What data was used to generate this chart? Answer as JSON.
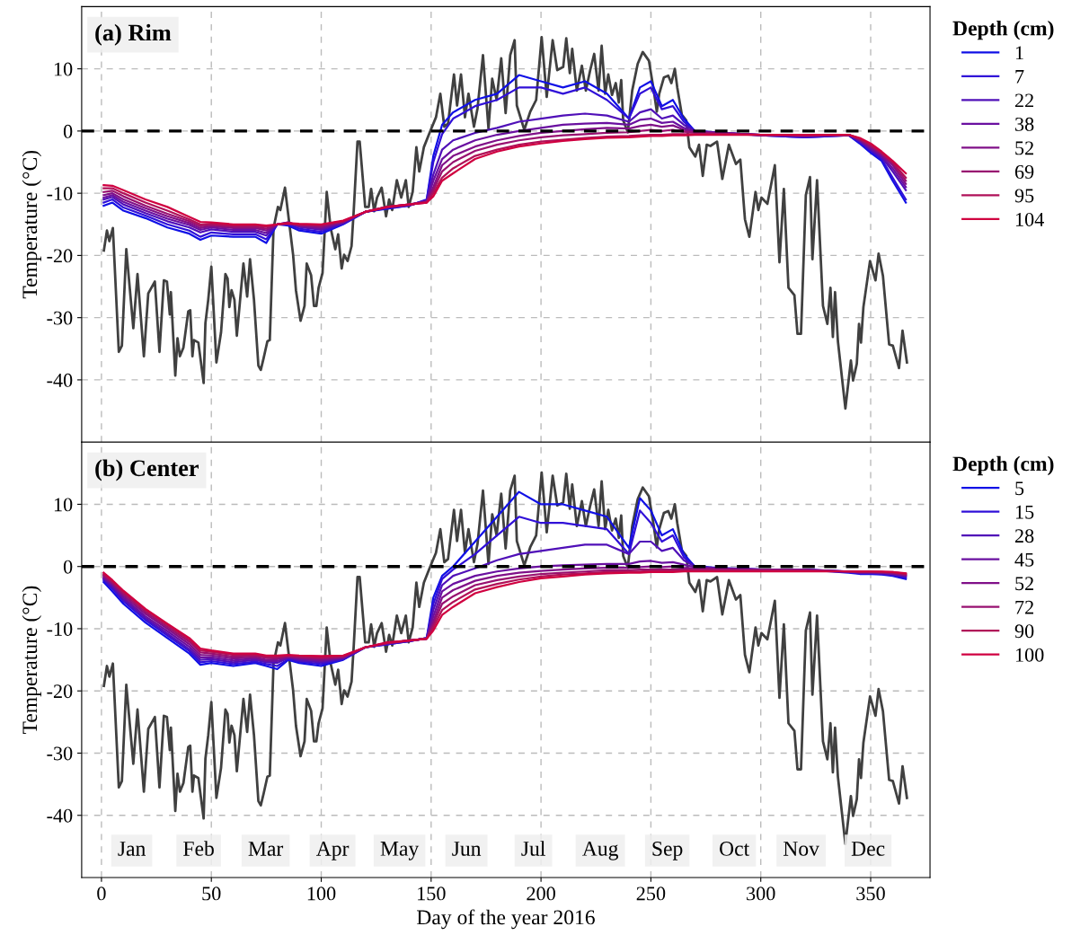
{
  "chart_data": [
    {
      "type": "line",
      "title": "(a) Rim",
      "ylabel": "Temperature (°C)",
      "legend_title": "Depth (cm)",
      "legend": "top right",
      "grid": true,
      "tick_labels": "y",
      "line_style": "solid",
      "xlim": [
        -9,
        377
      ],
      "xticks": [
        0,
        50,
        100,
        150,
        200,
        250,
        300,
        350
      ],
      "ylim": [
        -50,
        20
      ],
      "yticks": [
        -40,
        -30,
        -20,
        -10,
        0,
        10
      ],
      "ref_lines": [
        {
          "axis": "y",
          "value": 0,
          "color": "#000000",
          "line_style": "dashed"
        }
      ],
      "x": [
        1,
        5,
        10,
        20,
        30,
        40,
        45,
        50,
        60,
        70,
        75,
        80,
        85,
        90,
        100,
        110,
        120,
        130,
        140,
        148,
        151,
        155,
        160,
        170,
        180,
        190,
        200,
        210,
        220,
        230,
        240,
        245,
        250,
        255,
        260,
        265,
        270,
        280,
        300,
        320,
        340,
        345,
        350,
        355,
        360,
        366
      ],
      "series": [
        {
          "color": "#404040",
          "x": [
            1.1,
            2.5,
            3.6,
            5.2,
            7.9,
            9.3,
            11.3,
            14.5,
            16.4,
            19.3,
            21.3,
            24.3,
            26.4,
            28.4,
            29.8,
            31.1,
            31.6,
            33.6,
            34.6,
            35.7,
            37.3,
            39.5,
            40.4,
            41.4,
            42.1,
            44.1,
            46.5,
            47.3,
            48.6,
            50.0,
            52.3,
            54.4,
            56.4,
            57.4,
            58.2,
            59.2,
            60.5,
            61.6,
            64.6,
            66.3,
            67.6,
            69.4,
            71.4,
            72.5,
            73.8,
            75.5,
            76.6,
            78.3,
            80.3,
            81.4,
            83.5,
            87.2,
            88.5,
            90.6,
            92.4,
            93.4,
            95.4,
            96.7,
            97.8,
            98.8,
            100.6,
            102.5,
            104.3,
            106.4,
            107.7,
            109.3,
            110.4,
            112.0,
            113.8,
            114.8,
            116.5,
            117.5,
            120.0,
            121.6,
            122.7,
            124.1,
            125.4,
            127.5,
            129.5,
            130.9,
            132.3,
            134.4,
            136.4,
            138.5,
            139.8,
            141.6,
            143.3,
            144.6,
            146.7,
            149.4,
            152.2,
            154.2,
            156.0,
            157.7,
            160.4,
            161.8,
            163.6,
            165.4,
            167.0,
            169.5,
            171.1,
            173.6,
            176.1,
            177.8,
            179.8,
            181.9,
            183.9,
            186.0,
            188.0,
            189.0,
            192.4,
            195.1,
            197.8,
            200.3,
            202.6,
            205.3,
            207.4,
            210.1,
            211.5,
            213.1,
            214.2,
            216.3,
            218.6,
            220.4,
            222.4,
            224.2,
            226.2,
            227.6,
            229.2,
            230.6,
            232.3,
            234.0,
            235.4,
            236.5,
            237.4,
            239.5,
            241.5,
            244.0,
            246.3,
            249.1,
            251.1,
            252.7,
            253.8,
            255.9,
            257.9,
            259.3,
            260.9,
            262.0,
            264.1,
            266.1,
            267.5,
            270.2,
            271.9,
            273.6,
            275.4,
            277.1,
            280.1,
            282.5,
            285.5,
            288.7,
            290.7,
            292.8,
            294.8,
            297.6,
            298.9,
            300.3,
            303.0,
            306.4,
            308.5,
            310.5,
            312.6,
            315.3,
            316.7,
            318.3,
            320.5,
            322.4,
            323.5,
            325.6,
            328.3,
            330.3,
            331.7,
            332.8,
            333.8,
            335.1,
            338.5,
            341.0,
            342.0,
            343.7,
            344.7,
            345.6,
            346.7,
            349.7,
            352.2,
            353.6,
            355.6,
            358.4,
            360.1,
            362.9,
            364.5,
            366.5
          ],
          "values": [
            -19.2,
            -16.0,
            -17.7,
            -15.6,
            -35.5,
            -34.5,
            -19.0,
            -31.7,
            -23.0,
            -36.2,
            -26.1,
            -24.2,
            -35.5,
            -24.0,
            -24.2,
            -29.5,
            -25.9,
            -39.3,
            -33.3,
            -36.2,
            -34.8,
            -29.0,
            -28.8,
            -36.2,
            -33.6,
            -34.0,
            -40.5,
            -30.9,
            -27.1,
            -21.8,
            -37.2,
            -32.4,
            -23.0,
            -23.7,
            -28.3,
            -25.6,
            -27.1,
            -32.9,
            -21.3,
            -26.6,
            -20.6,
            -27.1,
            -37.7,
            -38.4,
            -36.5,
            -33.8,
            -33.6,
            -15.6,
            -12.2,
            -12.7,
            -9.1,
            -19.9,
            -25.6,
            -30.5,
            -28.1,
            -21.3,
            -23.2,
            -28.1,
            -28.1,
            -25.2,
            -22.8,
            -9.8,
            -15.6,
            -19.0,
            -16.6,
            -22.1,
            -19.9,
            -20.9,
            -18.5,
            -12.7,
            -1.7,
            -1.7,
            -12.2,
            -12.2,
            -9.3,
            -12.9,
            -10.7,
            -9.1,
            -13.7,
            -11.0,
            -12.7,
            -7.9,
            -10.7,
            -7.9,
            -12.2,
            -9.8,
            -2.6,
            -6.5,
            -2.6,
            -0.2,
            2.2,
            6.0,
            0.7,
            1.2,
            9.1,
            4.1,
            9.1,
            2.2,
            6.0,
            0.7,
            3.6,
            12.2,
            0.4,
            8.4,
            5.0,
            11.7,
            2.9,
            12.2,
            14.6,
            4.1,
            0.2,
            3.1,
            5.0,
            15.1,
            5.5,
            14.6,
            9.8,
            10.3,
            14.9,
            9.3,
            13.2,
            6.5,
            10.5,
            6.5,
            9.8,
            12.4,
            6.5,
            13.7,
            6.0,
            9.1,
            5.8,
            7.7,
            4.6,
            8.2,
            1.7,
            -0.2,
            6.5,
            10.8,
            12.7,
            11.3,
            7.0,
            3.1,
            6.0,
            8.6,
            8.9,
            7.7,
            10.0,
            7.0,
            2.6,
            1.7,
            -2.6,
            -4.1,
            -2.2,
            -7.2,
            -2.2,
            -2.4,
            -1.7,
            -7.7,
            -2.2,
            -5.3,
            -4.6,
            -14.2,
            -17.0,
            -9.8,
            -12.7,
            -10.7,
            -11.7,
            -5.5,
            -21.1,
            -9.3,
            -25.2,
            -26.4,
            -32.6,
            -32.6,
            -10.3,
            -7.4,
            -20.6,
            -7.9,
            -28.1,
            -31.0,
            -25.2,
            -33.1,
            -25.9,
            -33.8,
            -44.6,
            -36.9,
            -40.1,
            -37.4,
            -31.0,
            -34.0,
            -28.3,
            -20.9,
            -24.0,
            -19.7,
            -23.3,
            -34.3,
            -34.5,
            -38.1,
            -32.1,
            -37.2
          ]
        },
        {
          "name": "1",
          "color": "#1010e6",
          "values": [
            -12,
            -11.5,
            -12.8,
            -14,
            -15.5,
            -16.5,
            -17.5,
            -16.8,
            -17,
            -17,
            -18,
            -15,
            -15.2,
            -16,
            -16.5,
            -15,
            -13,
            -12.5,
            -12,
            -11,
            -4,
            1,
            3,
            5,
            6,
            9,
            8,
            7,
            8,
            6,
            2,
            7,
            8,
            4,
            5,
            2,
            0,
            -0.2,
            -0.7,
            -1,
            -0.7,
            -2,
            -3.5,
            -4.8,
            -8,
            -11.5
          ]
        },
        {
          "name": "7",
          "color": "#3010d8",
          "values": [
            -11.5,
            -11,
            -12.3,
            -13.6,
            -15,
            -16,
            -17,
            -16.3,
            -16.6,
            -16.6,
            -17.4,
            -15,
            -15,
            -15.7,
            -16.2,
            -14.9,
            -13,
            -12.4,
            -12,
            -11.1,
            -5,
            -0.5,
            2,
            4,
            5,
            7,
            7,
            6,
            7,
            5,
            2,
            6,
            7,
            3.5,
            4,
            1.5,
            0,
            -0.3,
            -0.7,
            -1,
            -0.7,
            -1.8,
            -3.2,
            -4.5,
            -7.5,
            -11
          ]
        },
        {
          "name": "22",
          "color": "#5010b8",
          "values": [
            -11,
            -10.6,
            -11.8,
            -13.2,
            -14.5,
            -15.5,
            -16.3,
            -15.8,
            -16.2,
            -16.2,
            -16.8,
            -15,
            -14.8,
            -15.4,
            -15.9,
            -14.8,
            -13,
            -12.3,
            -11.9,
            -11.2,
            -7,
            -3,
            -1.5,
            -0.3,
            0.5,
            1.5,
            2,
            2.5,
            2.8,
            2.5,
            1.5,
            3,
            3.5,
            2,
            2.5,
            1,
            0,
            -0.3,
            -0.6,
            -0.8,
            -0.6,
            -1.6,
            -3,
            -4.2,
            -6.5,
            -9.5
          ]
        },
        {
          "name": "38",
          "color": "#6a10a0",
          "values": [
            -10.7,
            -10.3,
            -11.4,
            -12.8,
            -14.1,
            -15.1,
            -15.9,
            -15.5,
            -15.9,
            -15.9,
            -16.4,
            -15,
            -14.7,
            -15.3,
            -15.7,
            -14.7,
            -13,
            -12.3,
            -11.9,
            -11.3,
            -8,
            -4.5,
            -3,
            -1.5,
            -0.6,
            0,
            0.5,
            1,
            1.2,
            1.3,
            1,
            1.8,
            2,
            1.3,
            1.5,
            0.5,
            -0.1,
            -0.3,
            -0.6,
            -0.8,
            -0.6,
            -1.5,
            -2.8,
            -4,
            -6,
            -9
          ]
        },
        {
          "name": "52",
          "color": "#801088",
          "values": [
            -10.3,
            -10,
            -11,
            -12.4,
            -13.7,
            -14.8,
            -15.6,
            -15.3,
            -15.6,
            -15.6,
            -16,
            -15,
            -14.7,
            -15.2,
            -15.5,
            -14.6,
            -13,
            -12.2,
            -11.8,
            -11.3,
            -9,
            -5.5,
            -4,
            -2.5,
            -1.5,
            -0.8,
            -0.3,
            0,
            0.3,
            0.5,
            0.4,
            0.8,
            1,
            0.7,
            0.9,
            0.2,
            -0.2,
            -0.3,
            -0.6,
            -0.8,
            -0.6,
            -1.4,
            -2.6,
            -3.8,
            -5.5,
            -8.5
          ]
        },
        {
          "name": "69",
          "color": "#981070",
          "values": [
            -9.8,
            -9.6,
            -10.5,
            -12,
            -13.3,
            -14.5,
            -15.3,
            -15.1,
            -15.4,
            -15.4,
            -15.7,
            -15,
            -14.8,
            -15.1,
            -15.3,
            -14.5,
            -13,
            -12.2,
            -11.8,
            -11.4,
            -9.5,
            -6.5,
            -5,
            -3.2,
            -2.2,
            -1.5,
            -1,
            -0.7,
            -0.5,
            -0.3,
            -0.2,
            0,
            0.2,
            0,
            0.2,
            -0.1,
            -0.3,
            -0.4,
            -0.6,
            -0.7,
            -0.6,
            -1.3,
            -2.4,
            -3.6,
            -5.2,
            -8
          ]
        },
        {
          "name": "95",
          "color": "#b01058",
          "values": [
            -9.2,
            -9.2,
            -10,
            -11.5,
            -12.8,
            -14.2,
            -15,
            -14.9,
            -15.2,
            -15.2,
            -15.4,
            -15,
            -14.9,
            -15,
            -15.1,
            -14.5,
            -13,
            -12.2,
            -11.8,
            -11.5,
            -10,
            -7.5,
            -6,
            -4,
            -3,
            -2.2,
            -1.7,
            -1.4,
            -1.1,
            -0.9,
            -0.8,
            -0.7,
            -0.6,
            -0.6,
            -0.5,
            -0.5,
            -0.5,
            -0.5,
            -0.6,
            -0.6,
            -0.6,
            -1.2,
            -2.2,
            -3.5,
            -5,
            -7.5
          ]
        },
        {
          "name": "104",
          "color": "#d00040",
          "values": [
            -8.7,
            -8.8,
            -9.5,
            -11,
            -12.2,
            -13.8,
            -14.6,
            -14.7,
            -15,
            -15,
            -15.2,
            -15,
            -14.8,
            -14.9,
            -15,
            -14.4,
            -13,
            -12.2,
            -11.8,
            -11.5,
            -10.5,
            -8,
            -6.8,
            -4.5,
            -3.3,
            -2.5,
            -2,
            -1.6,
            -1.3,
            -1.1,
            -1,
            -0.9,
            -0.8,
            -0.8,
            -0.7,
            -0.7,
            -0.6,
            -0.6,
            -0.6,
            -0.6,
            -0.6,
            -1.1,
            -2,
            -3.3,
            -4.8,
            -6.8
          ]
        }
      ]
    },
    {
      "type": "line",
      "title": "(b) Center",
      "xlabel": "Day of the year 2016",
      "ylabel": "Temperature (°C)",
      "legend_title": "Depth (cm)",
      "legend": "top right",
      "grid": true,
      "line_style": "solid",
      "xlim": [
        -9,
        377
      ],
      "xticks": [
        0,
        50,
        100,
        150,
        200,
        250,
        300,
        350
      ],
      "ylim": [
        -50,
        20
      ],
      "yticks": [
        -40,
        -30,
        -20,
        -10,
        0,
        10
      ],
      "ref_lines": [
        {
          "axis": "y",
          "value": 0,
          "color": "#000000",
          "line_style": "dashed"
        }
      ],
      "annotations": [
        "Jan",
        "Feb",
        "Mar",
        "Apr",
        "May",
        "Jun",
        "Jul",
        "Aug",
        "Sep",
        "Oct",
        "Nov",
        "Dec"
      ],
      "x": [
        1,
        5,
        10,
        20,
        30,
        40,
        45,
        50,
        60,
        70,
        75,
        80,
        85,
        90,
        100,
        110,
        120,
        130,
        140,
        148,
        151,
        155,
        160,
        170,
        180,
        190,
        200,
        210,
        220,
        230,
        240,
        245,
        250,
        255,
        260,
        265,
        270,
        280,
        300,
        320,
        340,
        345,
        350,
        355,
        360,
        366
      ],
      "series": [
        {
          "color": "#404040",
          "x": [
            1.1,
            2.5,
            3.6,
            5.2,
            7.9,
            9.3,
            11.3,
            14.5,
            16.4,
            19.3,
            21.3,
            24.3,
            26.4,
            28.4,
            29.8,
            31.1,
            31.6,
            33.6,
            34.6,
            35.7,
            37.3,
            39.5,
            40.4,
            41.4,
            42.1,
            44.1,
            46.5,
            47.3,
            48.6,
            50.0,
            52.3,
            54.4,
            56.4,
            57.4,
            58.2,
            59.2,
            60.5,
            61.6,
            64.6,
            66.3,
            67.6,
            69.4,
            71.4,
            72.5,
            73.8,
            75.5,
            76.6,
            78.3,
            80.3,
            81.4,
            83.5,
            87.2,
            88.5,
            90.6,
            92.4,
            93.4,
            95.4,
            96.7,
            97.8,
            98.8,
            100.6,
            102.5,
            104.3,
            106.4,
            107.7,
            109.3,
            110.4,
            112.0,
            113.8,
            114.8,
            116.5,
            117.5,
            120.0,
            121.6,
            122.7,
            124.1,
            125.4,
            127.5,
            129.5,
            130.9,
            132.3,
            134.4,
            136.4,
            138.5,
            139.8,
            141.6,
            143.3,
            144.6,
            146.7,
            149.4,
            152.2,
            154.2,
            156.0,
            157.7,
            160.4,
            161.8,
            163.6,
            165.4,
            167.0,
            169.5,
            171.1,
            173.6,
            176.1,
            177.8,
            179.8,
            181.9,
            183.9,
            186.0,
            188.0,
            189.0,
            192.4,
            195.1,
            197.8,
            200.3,
            202.6,
            205.3,
            207.4,
            210.1,
            211.5,
            213.1,
            214.2,
            216.3,
            218.6,
            220.4,
            222.4,
            224.2,
            226.2,
            227.6,
            229.2,
            230.6,
            232.3,
            234.0,
            235.4,
            236.5,
            237.4,
            239.5,
            241.5,
            244.0,
            246.3,
            249.1,
            251.1,
            252.7,
            253.8,
            255.9,
            257.9,
            259.3,
            260.9,
            262.0,
            264.1,
            266.1,
            267.5,
            270.2,
            271.9,
            273.6,
            275.4,
            277.1,
            280.1,
            282.5,
            285.5,
            288.7,
            290.7,
            292.8,
            294.8,
            297.6,
            298.9,
            300.3,
            303.0,
            306.4,
            308.5,
            310.5,
            312.6,
            315.3,
            316.7,
            318.3,
            320.5,
            322.4,
            323.5,
            325.6,
            328.3,
            330.3,
            331.7,
            332.8,
            333.8,
            335.1,
            338.5,
            341.0,
            342.0,
            343.7,
            344.7,
            345.6,
            346.7,
            349.7,
            352.2,
            353.6,
            355.6,
            358.4,
            360.1,
            362.9,
            364.5,
            366.5
          ],
          "values": [
            -19.2,
            -16.0,
            -17.7,
            -15.6,
            -35.5,
            -34.5,
            -19.0,
            -31.7,
            -23.0,
            -36.2,
            -26.1,
            -24.2,
            -35.5,
            -24.0,
            -24.2,
            -29.5,
            -25.9,
            -39.3,
            -33.3,
            -36.2,
            -34.8,
            -29.0,
            -28.8,
            -36.2,
            -33.6,
            -34.0,
            -40.5,
            -30.9,
            -27.1,
            -21.8,
            -37.2,
            -32.4,
            -23.0,
            -23.7,
            -28.3,
            -25.6,
            -27.1,
            -32.9,
            -21.3,
            -26.6,
            -20.6,
            -27.1,
            -37.7,
            -38.4,
            -36.5,
            -33.8,
            -33.6,
            -15.6,
            -12.2,
            -12.7,
            -9.1,
            -19.9,
            -25.6,
            -30.5,
            -28.1,
            -21.3,
            -23.2,
            -28.1,
            -28.1,
            -25.2,
            -22.8,
            -9.8,
            -15.6,
            -19.0,
            -16.6,
            -22.1,
            -19.9,
            -20.9,
            -18.5,
            -12.7,
            -1.7,
            -1.7,
            -12.2,
            -12.2,
            -9.3,
            -12.9,
            -10.7,
            -9.1,
            -13.7,
            -11.0,
            -12.7,
            -7.9,
            -10.7,
            -7.9,
            -12.2,
            -9.8,
            -2.6,
            -6.5,
            -2.6,
            -0.2,
            2.2,
            6.0,
            0.7,
            1.2,
            9.1,
            4.1,
            9.1,
            2.2,
            6.0,
            0.7,
            3.6,
            12.2,
            0.4,
            8.4,
            5.0,
            11.7,
            2.9,
            12.2,
            14.6,
            4.1,
            0.2,
            3.1,
            5.0,
            15.1,
            5.5,
            14.6,
            9.8,
            10.3,
            14.9,
            9.3,
            13.2,
            6.5,
            10.5,
            6.5,
            9.8,
            12.4,
            6.5,
            13.7,
            6.0,
            9.1,
            5.8,
            7.7,
            4.6,
            8.2,
            1.7,
            -0.2,
            6.5,
            10.8,
            12.7,
            11.3,
            7.0,
            3.1,
            6.0,
            8.6,
            8.9,
            7.7,
            10.0,
            7.0,
            2.6,
            1.7,
            -2.6,
            -4.1,
            -2.2,
            -7.2,
            -2.2,
            -2.4,
            -1.7,
            -7.7,
            -2.2,
            -5.3,
            -4.6,
            -14.2,
            -17.0,
            -9.8,
            -12.7,
            -10.7,
            -11.7,
            -5.5,
            -21.1,
            -9.3,
            -25.2,
            -26.4,
            -32.6,
            -32.6,
            -10.3,
            -7.4,
            -20.6,
            -7.9,
            -28.1,
            -31.0,
            -25.2,
            -33.1,
            -25.9,
            -33.8,
            -44.6,
            -36.9,
            -40.1,
            -37.4,
            -31.0,
            -34.0,
            -28.3,
            -20.9,
            -24.0,
            -19.7,
            -23.3,
            -34.3,
            -34.5,
            -38.1,
            -32.1,
            -37.2
          ]
        },
        {
          "name": "5",
          "color": "#1010e6",
          "values": [
            -2.5,
            -4,
            -6,
            -9,
            -11.5,
            -14,
            -15.8,
            -15.5,
            -16,
            -15.5,
            -16,
            -16.5,
            -15,
            -15.5,
            -16,
            -15,
            -13,
            -12.5,
            -12,
            -11.5,
            -5,
            -1.5,
            0,
            4,
            8,
            12,
            10,
            10,
            9,
            8,
            3,
            11,
            9,
            5,
            6,
            2,
            0,
            -0.2,
            -0.5,
            -0.5,
            -1,
            -1.2,
            -1.2,
            -1.3,
            -1.5,
            -2
          ]
        },
        {
          "name": "15",
          "color": "#3010d8",
          "values": [
            -2.2,
            -3.6,
            -5.6,
            -8.6,
            -11.1,
            -13.6,
            -15.4,
            -15.2,
            -15.7,
            -15.3,
            -15.7,
            -16,
            -14.9,
            -15.3,
            -15.7,
            -14.9,
            -13,
            -12.5,
            -12,
            -11.5,
            -6,
            -2,
            -0.5,
            2,
            5,
            8,
            7,
            7,
            6.5,
            6,
            2,
            9,
            7,
            4,
            5,
            1.5,
            0,
            -0.3,
            -0.5,
            -0.5,
            -0.9,
            -1.1,
            -1.1,
            -1.2,
            -1.4,
            -1.8
          ]
        },
        {
          "name": "28",
          "color": "#5010b8",
          "values": [
            -2,
            -3.3,
            -5.3,
            -8.3,
            -10.8,
            -13.3,
            -15,
            -14.9,
            -15.4,
            -15,
            -15.4,
            -15.5,
            -14.7,
            -15.1,
            -15.4,
            -14.8,
            -13,
            -12.4,
            -12,
            -11.5,
            -7,
            -3,
            -1.5,
            -0.3,
            1,
            2,
            2.5,
            3,
            3.5,
            3.5,
            2,
            4,
            4,
            2.5,
            3,
            1,
            0,
            -0.3,
            -0.5,
            -0.5,
            -0.8,
            -1,
            -1,
            -1.1,
            -1.3,
            -1.6
          ]
        },
        {
          "name": "45",
          "color": "#6a10a0",
          "values": [
            -1.8,
            -3,
            -5,
            -8,
            -10.4,
            -12.9,
            -14.6,
            -14.6,
            -15.1,
            -14.8,
            -15.2,
            -15.2,
            -14.6,
            -14.9,
            -15.2,
            -14.7,
            -13,
            -12.4,
            -11.9,
            -11.6,
            -8,
            -4,
            -2.8,
            -1.5,
            -0.8,
            -0.3,
            0,
            0.2,
            0.3,
            0.4,
            0.4,
            0.8,
            0.9,
            0.6,
            0.7,
            0.3,
            -0.1,
            -0.3,
            -0.5,
            -0.5,
            -0.8,
            -1,
            -1,
            -1,
            -1.2,
            -1.5
          ]
        },
        {
          "name": "52",
          "color": "#801088",
          "values": [
            -1.6,
            -2.8,
            -4.7,
            -7.6,
            -10,
            -12.5,
            -14.2,
            -14.3,
            -14.8,
            -14.6,
            -15,
            -14.9,
            -14.5,
            -14.7,
            -15,
            -14.6,
            -13,
            -12.3,
            -11.9,
            -11.6,
            -8.8,
            -5,
            -3.8,
            -2.3,
            -1.5,
            -1,
            -0.7,
            -0.5,
            -0.3,
            -0.2,
            -0.2,
            -0.1,
            0,
            -0.1,
            0,
            -0.2,
            -0.3,
            -0.4,
            -0.5,
            -0.6,
            -0.8,
            -0.9,
            -0.9,
            -1,
            -1.1,
            -1.4
          ]
        },
        {
          "name": "72",
          "color": "#981070",
          "values": [
            -1.4,
            -2.6,
            -4.4,
            -7.3,
            -9.7,
            -12.1,
            -13.8,
            -14,
            -14.5,
            -14.4,
            -14.7,
            -14.7,
            -14.4,
            -14.6,
            -14.8,
            -14.5,
            -13,
            -12.3,
            -11.9,
            -11.6,
            -9.3,
            -6,
            -4.8,
            -3,
            -2.2,
            -1.6,
            -1.2,
            -1,
            -0.8,
            -0.6,
            -0.6,
            -0.5,
            -0.5,
            -0.5,
            -0.5,
            -0.5,
            -0.5,
            -0.5,
            -0.6,
            -0.6,
            -0.8,
            -0.9,
            -0.9,
            -0.9,
            -1,
            -1.3
          ]
        },
        {
          "name": "90",
          "color": "#b01058",
          "values": [
            -1.2,
            -2.4,
            -4.1,
            -7,
            -9.4,
            -11.8,
            -13.5,
            -13.7,
            -14.2,
            -14.2,
            -14.5,
            -14.5,
            -14.3,
            -14.4,
            -14.6,
            -14.4,
            -13,
            -12.3,
            -11.9,
            -11.6,
            -9.8,
            -7,
            -5.7,
            -3.7,
            -2.8,
            -2.1,
            -1.6,
            -1.3,
            -1.1,
            -0.9,
            -0.8,
            -0.8,
            -0.7,
            -0.7,
            -0.7,
            -0.7,
            -0.7,
            -0.7,
            -0.7,
            -0.7,
            -0.8,
            -0.8,
            -0.8,
            -0.9,
            -0.9,
            -1.2
          ]
        },
        {
          "name": "100",
          "color": "#d00040",
          "values": [
            -1,
            -2.2,
            -3.9,
            -6.8,
            -9.2,
            -11.5,
            -13.2,
            -13.5,
            -14,
            -14,
            -14.3,
            -14.3,
            -14.2,
            -14.3,
            -14.4,
            -14.3,
            -13,
            -12.2,
            -11.9,
            -11.6,
            -10.3,
            -7.8,
            -6.5,
            -4.3,
            -3.3,
            -2.5,
            -1.9,
            -1.6,
            -1.3,
            -1.1,
            -1,
            -1,
            -0.9,
            -0.9,
            -0.9,
            -0.8,
            -0.8,
            -0.8,
            -0.8,
            -0.8,
            -0.8,
            -0.8,
            -0.8,
            -0.8,
            -0.9,
            -1.1
          ]
        }
      ]
    }
  ]
}
